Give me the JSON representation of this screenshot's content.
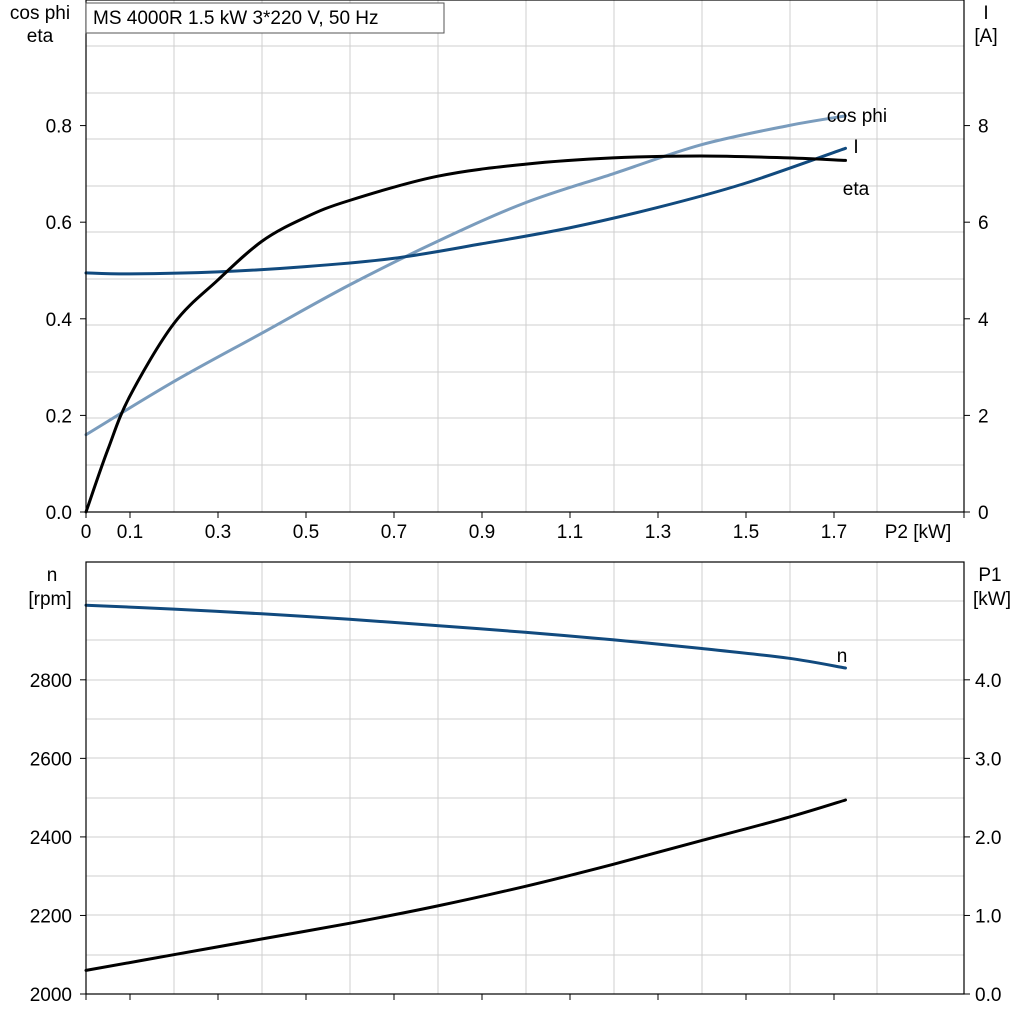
{
  "title": "MS 4000R   1.5 kW   3*220 V, 50 Hz",
  "colors": {
    "cos_phi": "#7a9cbd",
    "current": "#114a7e",
    "eta": "#000000",
    "speed": "#114a7e",
    "p1": "#000000",
    "grid": "#cfcfcf"
  },
  "chart_data": [
    {
      "type": "line",
      "xlabel": "P2 [kW]",
      "left_axis_label": [
        "cos phi",
        "eta"
      ],
      "right_axis_label": [
        "I",
        "[A]"
      ],
      "x_ticks": [
        0,
        0.1,
        0.3,
        0.5,
        0.7,
        0.9,
        1.1,
        1.3,
        1.5,
        1.7
      ],
      "x_tick_labels": [
        "0",
        "0.1",
        "0.3",
        "0.5",
        "0.7",
        "0.9",
        "1.1",
        "1.3",
        "1.5",
        "1.7"
      ],
      "xlim": [
        0,
        2.0
      ],
      "ylim_left": [
        0,
        1.06
      ],
      "ylim_right": [
        0,
        10.6
      ],
      "left_ticks": [
        "0.0",
        "0.2",
        "0.4",
        "0.6",
        "0.8"
      ],
      "right_ticks": [
        "0",
        "2",
        "4",
        "6",
        "8"
      ],
      "series": [
        {
          "name": "cos phi",
          "axis": "left",
          "x": [
            0,
            0.2,
            0.4,
            0.6,
            0.8,
            1.0,
            1.2,
            1.4,
            1.6,
            1.73
          ],
          "y": [
            0.16,
            0.27,
            0.37,
            0.47,
            0.56,
            0.64,
            0.7,
            0.76,
            0.8,
            0.82
          ]
        },
        {
          "name": "I",
          "axis": "right",
          "x": [
            0,
            0.1,
            0.3,
            0.5,
            0.7,
            0.9,
            1.1,
            1.3,
            1.5,
            1.73
          ],
          "y": [
            4.95,
            4.93,
            4.97,
            5.08,
            5.25,
            5.55,
            5.88,
            6.3,
            6.8,
            7.53
          ]
        },
        {
          "name": "eta",
          "axis": "left",
          "x": [
            0,
            0.05,
            0.1,
            0.2,
            0.3,
            0.4,
            0.5,
            0.6,
            0.8,
            1.0,
            1.2,
            1.4,
            1.6,
            1.73
          ],
          "y": [
            0.0,
            0.13,
            0.24,
            0.39,
            0.48,
            0.56,
            0.61,
            0.645,
            0.695,
            0.72,
            0.733,
            0.737,
            0.733,
            0.728
          ]
        }
      ]
    },
    {
      "type": "line",
      "left_axis_label": [
        "n",
        "[rpm]"
      ],
      "right_axis_label": [
        "P1",
        "[kW]"
      ],
      "xlim": [
        0,
        2.0
      ],
      "ylim_left": [
        2000,
        3100
      ],
      "ylim_right": [
        0,
        5.5
      ],
      "left_ticks": [
        "2000",
        "2200",
        "2400",
        "2600",
        "2800"
      ],
      "right_ticks": [
        "0.0",
        "1.0",
        "2.0",
        "3.0",
        "4.0"
      ],
      "series": [
        {
          "name": "n",
          "axis": "left",
          "x": [
            0,
            0.2,
            0.4,
            0.6,
            0.8,
            1.0,
            1.2,
            1.4,
            1.6,
            1.73
          ],
          "y": [
            2990,
            2980,
            2968,
            2954,
            2938,
            2921,
            2902,
            2880,
            2855,
            2830
          ]
        },
        {
          "axis": "right",
          "x": [
            0,
            0.2,
            0.4,
            0.6,
            0.8,
            1.0,
            1.2,
            1.4,
            1.6,
            1.73
          ],
          "y": [
            0.3,
            0.5,
            0.7,
            0.9,
            1.12,
            1.37,
            1.65,
            1.95,
            2.25,
            2.47
          ]
        }
      ]
    }
  ]
}
